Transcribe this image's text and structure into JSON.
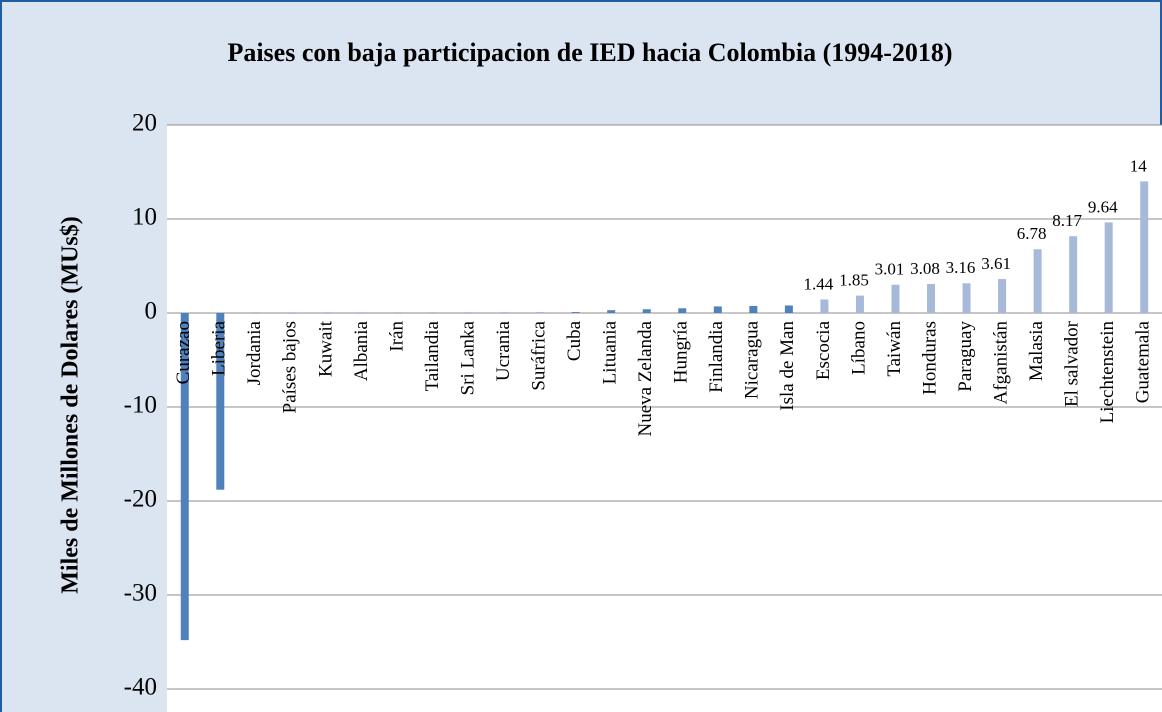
{
  "chart_data": {
    "type": "bar",
    "title": "Paises con baja participacion de IED hacia Colombia (1994-2018)",
    "y_label": "Miles de Millones  de Dolares (MUs$)",
    "categories": [
      "Curazao",
      "Liberia",
      "Jordania",
      "Países bajos",
      "Kuwait",
      "Albania",
      "Irán",
      "Tailandia",
      "Sri Lanka",
      "Ucrania",
      "Suráfrica",
      "Cuba",
      "Lituania",
      "Nueva Zelanda",
      "Hungría",
      "Finlandia",
      "Nicaragua",
      "Isla de Man",
      "Escocia",
      "Líbano",
      "Taiwán",
      "Honduras",
      "Paraguay",
      "Afganistán",
      "Malasia",
      "El salvador",
      "Liechtenstein",
      "Guatemala"
    ],
    "values": [
      -34.8,
      -18.8,
      0.01,
      0.01,
      0.02,
      0.02,
      0.03,
      0.03,
      0.04,
      0.05,
      0.06,
      0.1,
      0.3,
      0.4,
      0.5,
      0.7,
      0.75,
      0.8,
      1.44,
      1.85,
      3.01,
      3.08,
      3.16,
      3.61,
      6.78,
      8.17,
      9.64,
      14
    ],
    "value_labels": [
      null,
      null,
      null,
      null,
      null,
      null,
      null,
      null,
      null,
      null,
      null,
      null,
      null,
      null,
      null,
      null,
      null,
      null,
      "1.44",
      "1.85",
      "3.01",
      "3.08",
      "3.16",
      "3.61",
      "6.78",
      "8.17",
      "9.64",
      "14"
    ],
    "colors": [
      "#4f81bd",
      "#4f81bd",
      "#4f81bd",
      "#4f81bd",
      "#4f81bd",
      "#4f81bd",
      "#4f81bd",
      "#4f81bd",
      "#4f81bd",
      "#4f81bd",
      "#4f81bd",
      "#4f81bd",
      "#4f81bd",
      "#4f81bd",
      "#4f81bd",
      "#4f81bd",
      "#4f81bd",
      "#4f81bd",
      "#a7b9d9",
      "#a7b9d9",
      "#a7b9d9",
      "#a7b9d9",
      "#a7b9d9",
      "#a7b9d9",
      "#a7b9d9",
      "#a7b9d9",
      "#a7b9d9",
      "#a7b9d9"
    ],
    "ylim": [
      -40,
      20
    ],
    "yticks": [
      -40,
      -30,
      -20,
      -10,
      0,
      10,
      20
    ],
    "grid": true
  }
}
